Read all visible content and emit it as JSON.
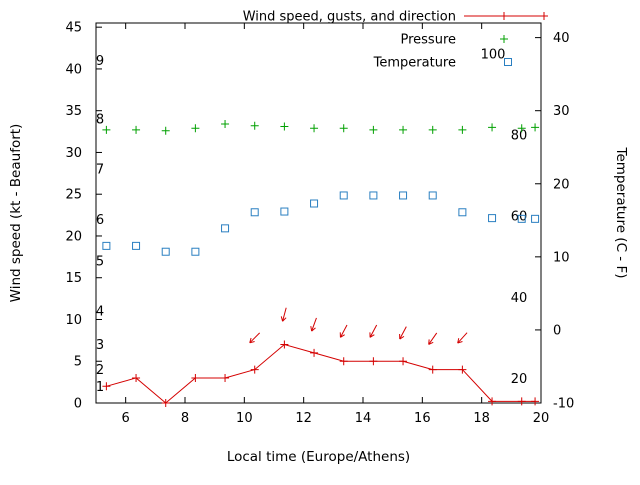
{
  "chart_data": {
    "type": "line",
    "title": "",
    "xlabel": "Local time (Europe/Athens)",
    "ylabel_left": "Wind speed (kt - Beaufort)",
    "ylabel_right": "Temperature (C - F)",
    "x_range": [
      5,
      20
    ],
    "y_left_range": [
      0,
      45.5
    ],
    "y_right_range": [
      -10,
      42
    ],
    "x_ticks": [
      6,
      8,
      10,
      12,
      14,
      16,
      18,
      20
    ],
    "y_left_ticks": [
      0,
      5,
      10,
      15,
      20,
      25,
      30,
      35,
      40,
      45
    ],
    "y_right_ticks": [
      -10,
      0,
      10,
      20,
      30,
      40
    ],
    "grid": false,
    "legend_position": "top-inside",
    "beaufort_labels": [
      {
        "label": "1",
        "kt": 2
      },
      {
        "label": "2",
        "kt": 4
      },
      {
        "label": "3",
        "kt": 7
      },
      {
        "label": "4",
        "kt": 11
      },
      {
        "label": "5",
        "kt": 17
      },
      {
        "label": "6",
        "kt": 22
      },
      {
        "label": "7",
        "kt": 28
      },
      {
        "label": "8",
        "kt": 34
      },
      {
        "label": "9",
        "kt": 41
      }
    ],
    "fahrenheit_labels": [
      {
        "label": "100",
        "f": 100
      },
      {
        "label": "80",
        "f": 80
      },
      {
        "label": "60",
        "f": 60
      },
      {
        "label": "40",
        "f": 40
      },
      {
        "label": "20",
        "f": 20
      }
    ],
    "series": [
      {
        "name": "Wind speed, gusts, and direction",
        "color": "#d40000",
        "style": "line-plus",
        "axis": "left",
        "x": [
          5.35,
          6.35,
          7.35,
          8.35,
          9.35,
          10.35,
          11.35,
          12.35,
          13.35,
          14.35,
          15.35,
          16.35,
          17.35,
          18.35,
          19.35,
          19.8
        ],
        "y": [
          2,
          3,
          0,
          3,
          3,
          4,
          7,
          6,
          5,
          5,
          5,
          4,
          4,
          0.2,
          0.2,
          0.2
        ]
      },
      {
        "name": "Pressure",
        "color": "#00a000",
        "style": "plus",
        "axis": "left",
        "x": [
          5.35,
          6.35,
          7.35,
          8.35,
          9.35,
          10.35,
          11.35,
          12.35,
          13.35,
          14.35,
          15.35,
          16.35,
          17.35,
          18.35,
          19.35,
          19.8
        ],
        "y": [
          32.7,
          32.7,
          32.6,
          32.9,
          33.4,
          33.2,
          33.1,
          32.9,
          32.9,
          32.7,
          32.7,
          32.7,
          32.7,
          33.0,
          32.9,
          33.0
        ]
      },
      {
        "name": "Temperature",
        "color": "#2a7fc1",
        "style": "open-square",
        "axis": "right",
        "x": [
          5.35,
          6.35,
          7.35,
          8.35,
          9.35,
          10.35,
          11.35,
          12.35,
          13.35,
          14.35,
          15.35,
          16.35,
          17.35,
          18.35,
          19.35,
          19.8
        ],
        "y": [
          11.5,
          11.5,
          10.7,
          10.7,
          13.9,
          16.1,
          16.2,
          17.3,
          18.4,
          18.4,
          18.4,
          18.4,
          16.1,
          15.3,
          15.2,
          15.2
        ]
      }
    ],
    "wind_direction_arrows": [
      {
        "x": 10.35,
        "kt": 7.8,
        "angle_deg": 225
      },
      {
        "x": 11.35,
        "kt": 10.6,
        "angle_deg": 255
      },
      {
        "x": 12.35,
        "kt": 9.4,
        "angle_deg": 250
      },
      {
        "x": 13.35,
        "kt": 8.6,
        "angle_deg": 242
      },
      {
        "x": 14.35,
        "kt": 8.6,
        "angle_deg": 242
      },
      {
        "x": 15.35,
        "kt": 8.4,
        "angle_deg": 242
      },
      {
        "x": 16.35,
        "kt": 7.7,
        "angle_deg": 235
      },
      {
        "x": 17.35,
        "kt": 7.8,
        "angle_deg": 228
      }
    ]
  }
}
